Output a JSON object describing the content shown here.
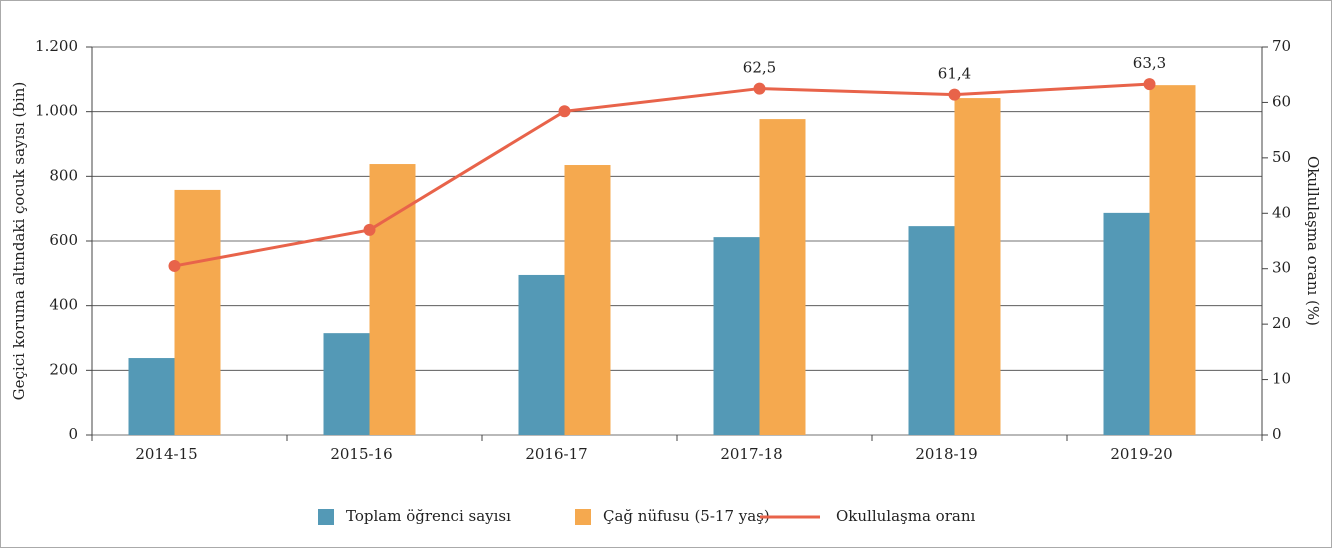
{
  "chart_data": {
    "type": "bar-line",
    "categories": [
      "2014-15",
      "2015-16",
      "2016-17",
      "2017-18",
      "2018-19",
      "2019-20"
    ],
    "series": [
      {
        "name": "Toplam öğrenci sayısı",
        "color": "#5499b6",
        "type": "bar",
        "values": [
          238,
          315,
          495,
          612,
          646,
          687
        ]
      },
      {
        "name": "Çağ nüfusu (5-17 yaş)",
        "color": "#f5a94f",
        "type": "bar",
        "values": [
          758,
          838,
          835,
          977,
          1042,
          1082
        ]
      },
      {
        "name": "Okullulaşma oranı",
        "color": "#e8634a",
        "type": "line",
        "axis": "y2",
        "values": [
          30.5,
          37.0,
          58.4,
          62.5,
          61.4,
          63.3
        ],
        "value_labels": [
          null,
          null,
          null,
          "62,5",
          "61,4",
          "63,3"
        ]
      }
    ],
    "ylabel": "Geçici koruma altındaki çocuk sayısı (bin)",
    "y2label": "Okullulaşma oranı (%)",
    "ylim": [
      0,
      1200
    ],
    "yticks": [
      0,
      200,
      400,
      600,
      800,
      {
        "value": 1000,
        "label": "1.000"
      },
      {
        "value": 1200,
        "label": "1.200"
      }
    ],
    "y2lim": [
      0,
      70
    ],
    "y2ticks": [
      0,
      10,
      20,
      30,
      40,
      50,
      60,
      70
    ],
    "grid": true,
    "legend": "bottom"
  }
}
